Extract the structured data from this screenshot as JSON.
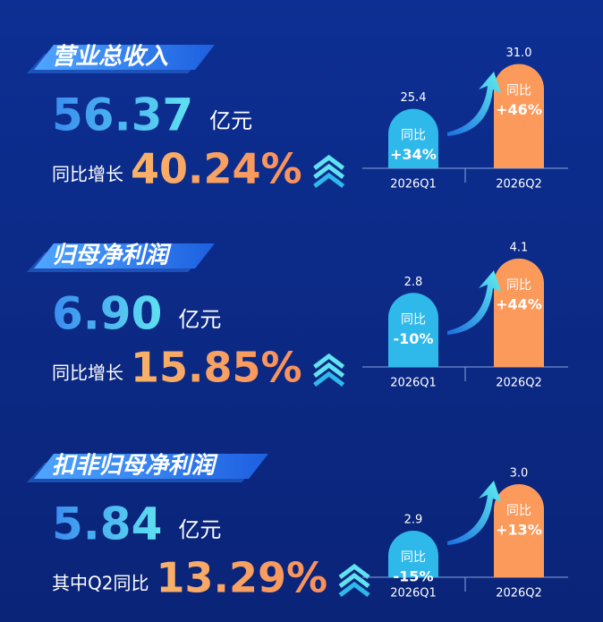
{
  "sections": [
    {
      "title": "营业总收入",
      "value": "56.37",
      "unit": "亿元",
      "growth_label": "同比增长",
      "growth": "40.24%",
      "chart": {
        "type": "bar",
        "categories": [
          "2026Q1",
          "2026Q2"
        ],
        "values": [
          25.4,
          31
        ],
        "value_labels": [
          "25.4",
          "31.0"
        ],
        "ylim": [
          18,
          32.5
        ],
        "bar_labels": [
          [
            "同比",
            "+34%"
          ],
          [
            "同比",
            "+46%"
          ]
        ],
        "colors": [
          "#2fb8ea",
          "#fb9a5a"
        ]
      }
    },
    {
      "title": "归母净利润",
      "value": "6.90",
      "unit": "亿元",
      "growth_label": "同比增长",
      "growth": "15.85%",
      "chart": {
        "type": "bar",
        "categories": [
          "2026Q1",
          "2026Q2"
        ],
        "values": [
          2.8,
          4.1
        ],
        "ylim": [
          0,
          4.4
        ],
        "bar_labels": [
          [
            "同比",
            "-10%"
          ],
          [
            "同比",
            "+44%"
          ]
        ],
        "colors": [
          "#2fb8ea",
          "#fb9a5a"
        ]
      }
    },
    {
      "title": "扣非归母净利润",
      "value": "5.84",
      "unit": "亿元",
      "growth_label": "其中Q2同比",
      "growth": "13.29%",
      "chart": {
        "type": "bar",
        "categories": [
          "2026Q1",
          "2026Q2"
        ],
        "values": [
          2.9,
          3
        ],
        "value_labels": [
          "2.9",
          "3.0"
        ],
        "ylim": [
          2.8,
          3.05
        ],
        "bar_labels": [
          [
            "同比",
            "-15%"
          ],
          [
            "同比",
            "+13%"
          ]
        ],
        "colors": [
          "#2fb8ea",
          "#fb9a5a"
        ]
      }
    }
  ]
}
